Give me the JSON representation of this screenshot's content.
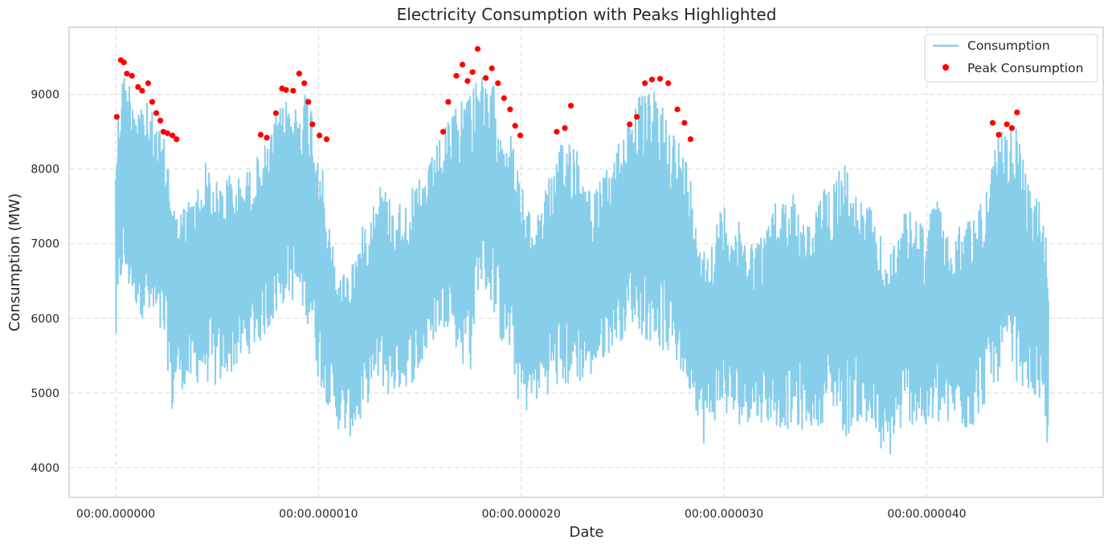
{
  "chart_data": {
    "type": "line",
    "title": "Electricity Consumption with Peaks Highlighted",
    "xlabel": "Date",
    "ylabel": "Consumption (MW)",
    "xlim": [
      -2.3,
      48.7
    ],
    "ylim": [
      3600,
      9900
    ],
    "x_ticks": [
      0,
      10,
      20,
      30,
      40
    ],
    "x_tick_labels": [
      "00:00.000000",
      "00:00.000010",
      "00:00.000020",
      "00:00.000030",
      "00:00.000040"
    ],
    "y_ticks": [
      4000,
      5000,
      6000,
      7000,
      8000,
      9000
    ],
    "y_tick_labels": [
      "4000",
      "5000",
      "6000",
      "7000",
      "8000",
      "9000"
    ],
    "peak_threshold": 8400,
    "grid": true,
    "legend_position": "top-right",
    "colors": {
      "line": "#87CEEB",
      "peaks": "#ff0000",
      "grid": "#d9d9d9",
      "axes": "#cccccc"
    },
    "series": [
      {
        "name": "Consumption",
        "kind": "line",
        "envelope_x": [
          0,
          0.3,
          0.6,
          1.0,
          1.5,
          2.0,
          2.5,
          2.8,
          3.0,
          3.5,
          4.0,
          4.5,
          5.0,
          5.5,
          6.0,
          6.5,
          7.0,
          7.5,
          8.0,
          8.5,
          9.0,
          9.3,
          9.6,
          10.0,
          10.5,
          11.0,
          11.5,
          12.0,
          12.5,
          13.0,
          13.5,
          14.0,
          14.5,
          15.0,
          15.5,
          16.0,
          16.5,
          17.0,
          17.5,
          17.9,
          18.2,
          18.6,
          19.0,
          19.5,
          20.0,
          20.5,
          21.0,
          21.5,
          22.0,
          22.5,
          23.0,
          23.5,
          24.0,
          24.5,
          25.0,
          25.5,
          26.0,
          26.5,
          27.0,
          27.5,
          28.0,
          28.5,
          29.0,
          29.5,
          30.0,
          30.5,
          31.0,
          31.5,
          32.0,
          32.5,
          33.0,
          33.5,
          34.0,
          34.5,
          35.0,
          35.5,
          36.0,
          36.5,
          37.0,
          37.5,
          38.0,
          38.5,
          39.0,
          39.5,
          40.0,
          40.5,
          41.0,
          41.5,
          42.0,
          42.5,
          43.0,
          43.5,
          44.0,
          44.5,
          45.0,
          45.5,
          46.0
        ],
        "envelope_max": [
          8600,
          9450,
          9400,
          9250,
          9050,
          8800,
          8450,
          8100,
          7500,
          7700,
          7900,
          8300,
          7950,
          8100,
          8000,
          8100,
          8300,
          8500,
          8900,
          9100,
          9000,
          9250,
          9150,
          8600,
          7400,
          6700,
          6800,
          7200,
          7600,
          8000,
          7800,
          7700,
          7800,
          8000,
          8200,
          8550,
          8800,
          9200,
          9350,
          9600,
          9200,
          9300,
          9000,
          8600,
          8000,
          7400,
          7800,
          8100,
          8500,
          8800,
          8300,
          7800,
          8000,
          8250,
          8700,
          9100,
          9150,
          9200,
          9100,
          8700,
          8450,
          7900,
          7100,
          7300,
          7700,
          7500,
          7300,
          7200,
          7300,
          7700,
          7800,
          8000,
          7300,
          7700,
          7900,
          8250,
          8350,
          7800,
          7700,
          7500,
          6900,
          7300,
          7600,
          7500,
          7400,
          7800,
          7200,
          7300,
          7500,
          7600,
          8000,
          8600,
          8700,
          8750,
          7900,
          7800,
          7100
        ],
        "envelope_min": [
          5300,
          6400,
          6200,
          6000,
          5800,
          5600,
          5400,
          4450,
          5000,
          4900,
          5000,
          5000,
          4900,
          5100,
          5200,
          5400,
          5500,
          5700,
          5900,
          6200,
          6000,
          5900,
          5700,
          5000,
          4700,
          4400,
          4300,
          4400,
          4800,
          5000,
          4800,
          4900,
          5000,
          5100,
          5500,
          5700,
          5800,
          5200,
          5100,
          6300,
          6200,
          6000,
          5500,
          5300,
          4500,
          4700,
          4800,
          4900,
          4900,
          4900,
          5000,
          5100,
          5300,
          5500,
          5600,
          5800,
          5600,
          5500,
          5400,
          5300,
          5000,
          4800,
          4200,
          4500,
          4600,
          4400,
          4500,
          4500,
          4500,
          4400,
          4400,
          4300,
          4400,
          4400,
          4500,
          4600,
          4200,
          4500,
          4300,
          4200,
          3900,
          4200,
          4500,
          4400,
          4300,
          4400,
          4400,
          4500,
          4300,
          4500,
          4800,
          5000,
          5100,
          5000,
          4900,
          4700,
          4100
        ]
      },
      {
        "name": "Peak Consumption",
        "kind": "scatter",
        "x": [
          0.05,
          0.25,
          0.4,
          0.55,
          0.8,
          1.1,
          1.3,
          1.6,
          1.8,
          2.0,
          2.2,
          2.35,
          2.55,
          2.8,
          3.0,
          7.15,
          7.45,
          7.9,
          8.2,
          8.4,
          8.75,
          9.05,
          9.3,
          9.5,
          9.7,
          10.05,
          10.4,
          16.15,
          16.4,
          16.8,
          17.1,
          17.35,
          17.6,
          17.85,
          18.25,
          18.55,
          18.85,
          19.15,
          19.45,
          19.7,
          19.95,
          21.75,
          22.15,
          22.45,
          25.35,
          25.7,
          26.1,
          26.45,
          26.85,
          27.25,
          27.7,
          28.05,
          28.35,
          43.25,
          43.55,
          43.95,
          44.2,
          44.45
        ],
        "y": [
          8700,
          9460,
          9430,
          9280,
          9250,
          9100,
          9050,
          9150,
          8900,
          8750,
          8650,
          8500,
          8480,
          8450,
          8400,
          8460,
          8420,
          8750,
          9080,
          9060,
          9050,
          9280,
          9150,
          8900,
          8600,
          8450,
          8400,
          8500,
          8900,
          9250,
          9400,
          9180,
          9300,
          9610,
          9220,
          9350,
          9150,
          8950,
          8800,
          8580,
          8450,
          8500,
          8550,
          8850,
          8600,
          8700,
          9150,
          9200,
          9210,
          9150,
          8800,
          8620,
          8400,
          8620,
          8460,
          8600,
          8550,
          8760
        ]
      }
    ]
  }
}
